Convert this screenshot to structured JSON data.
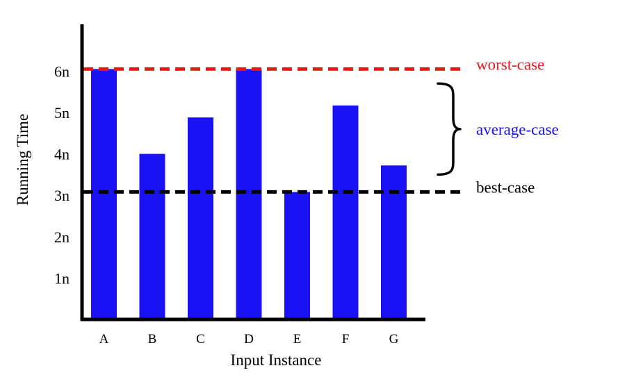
{
  "chart_data": {
    "type": "bar",
    "categories": [
      "A",
      "B",
      "C",
      "D",
      "E",
      "F",
      "G"
    ],
    "values": [
      6.05,
      4.0,
      4.88,
      6.05,
      3.08,
      5.17,
      3.72
    ],
    "xlabel": "Input Instance",
    "ylabel": "Running Time",
    "y_ticks": [
      {
        "value": 1,
        "label": "1n"
      },
      {
        "value": 2,
        "label": "2n"
      },
      {
        "value": 3,
        "label": "3n"
      },
      {
        "value": 4,
        "label": "4n"
      },
      {
        "value": 5,
        "label": "5n"
      },
      {
        "value": 6,
        "label": "6n"
      }
    ],
    "ylim": [
      0,
      7.2
    ],
    "grid": false,
    "bar_color": "#1a12f5",
    "reference_lines": [
      {
        "label": "worst-case",
        "value": 6.05,
        "color": "#e21b1b",
        "style": "dashed"
      },
      {
        "label": "best-case",
        "value": 3.08,
        "color": "#000000",
        "style": "dashed"
      }
    ],
    "annotations": [
      {
        "label": "average-case",
        "color": "#1a12f5",
        "spans": [
          3.5,
          5.7
        ]
      }
    ]
  }
}
